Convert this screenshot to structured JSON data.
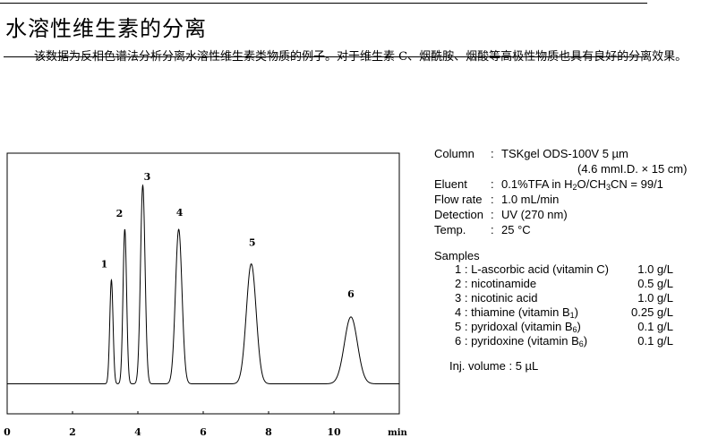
{
  "header": {
    "title": "水溶性维生素的分离",
    "paragraph": "该数据为反相色谱法分析分离水溶性维生素类物质的例子。对于维生素 C、烟酰胺、烟酸等高极性物质也具有良好的分离效果。"
  },
  "conditions": {
    "column_label": "Column",
    "column_value": "TSKgel ODS-100V 5 µm",
    "column_dims": "(4.6 mmI.D. × 15 cm)",
    "eluent_label": "Eluent",
    "eluent_a": "0.1%TFA in H",
    "eluent_b": "O/CH",
    "eluent_c": "CN = 99/1",
    "sub2": "2",
    "sub3": "3",
    "flow_label": "Flow rate",
    "flow_value": "1.0 mL/min",
    "detection_label": "Detection",
    "detection_value": "UV (270 nm)",
    "temp_label": "Temp.",
    "temp_value": "25 °C",
    "colon": ":",
    "samples_label": "Samples",
    "samples": [
      {
        "num": "1",
        "name": "L-ascorbic acid (vitamin C)",
        "sub": "",
        "tail": "",
        "amount": "1.0 g/L"
      },
      {
        "num": "2",
        "name": "nicotinamide",
        "sub": "",
        "tail": "",
        "amount": "0.5 g/L"
      },
      {
        "num": "3",
        "name": "nicotinic acid",
        "sub": "",
        "tail": "",
        "amount": "1.0 g/L"
      },
      {
        "num": "4",
        "name": "thiamine (vitamin B",
        "sub": "1",
        "tail": ")",
        "amount": "0.25 g/L"
      },
      {
        "num": "5",
        "name": "pyridoxal (vitamin B",
        "sub": "6",
        "tail": ")",
        "amount": "0.1 g/L"
      },
      {
        "num": "6",
        "name": "pyridoxine (vitamin B",
        "sub": "6",
        "tail": ")",
        "amount": "0.1 g/L"
      }
    ],
    "inj_volume": "Inj. volume : 5 µL"
  },
  "chart_data": {
    "type": "line",
    "xlabel": "min",
    "ylabel": "",
    "xlim": [
      0,
      12
    ],
    "ylim": [
      -0.13,
      1.0
    ],
    "x_ticks": [
      0,
      2,
      4,
      6,
      8,
      10
    ],
    "x_tick_labels": [
      "0",
      "2",
      "4",
      "6",
      "8",
      "10"
    ],
    "grid": false,
    "line_color": "#000000",
    "peaks": [
      {
        "label": "1",
        "rt": 3.19,
        "height": 0.45,
        "sigma": 0.05
      },
      {
        "label": "2",
        "rt": 3.6,
        "height": 0.67,
        "sigma": 0.055
      },
      {
        "label": "3",
        "rt": 4.15,
        "height": 0.86,
        "sigma": 0.07
      },
      {
        "label": "4",
        "rt": 5.25,
        "height": 0.67,
        "sigma": 0.1
      },
      {
        "label": "5",
        "rt": 7.47,
        "height": 0.52,
        "sigma": 0.15
      },
      {
        "label": "6",
        "rt": 10.52,
        "height": 0.29,
        "sigma": 0.2
      }
    ]
  }
}
